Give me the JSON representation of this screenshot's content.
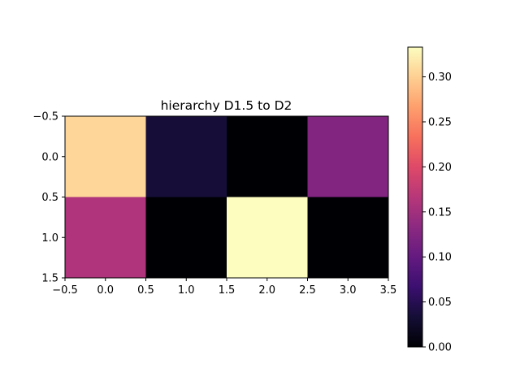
{
  "chart_data": {
    "type": "heatmap",
    "title": "hierarchy D1.5 to D2",
    "xlabel": "",
    "ylabel": "",
    "colormap": "magma",
    "x_ticks": [
      "−0.5",
      "0.0",
      "0.5",
      "1.0",
      "1.5",
      "2.0",
      "2.5",
      "3.0",
      "3.5"
    ],
    "y_ticks": [
      "−0.5",
      "0.0",
      "0.5",
      "1.0",
      "1.5"
    ],
    "xlim": [
      -0.5,
      3.5
    ],
    "ylim": [
      1.5,
      -0.5
    ],
    "values": [
      [
        0.305,
        0.035,
        0.0,
        0.125
      ],
      [
        0.16,
        0.0,
        0.333,
        0.0
      ]
    ],
    "colorbar": {
      "range": [
        0.0,
        0.333
      ],
      "ticks": [
        "0.00",
        "0.05",
        "0.10",
        "0.15",
        "0.20",
        "0.25",
        "0.30"
      ]
    },
    "grid": false
  }
}
